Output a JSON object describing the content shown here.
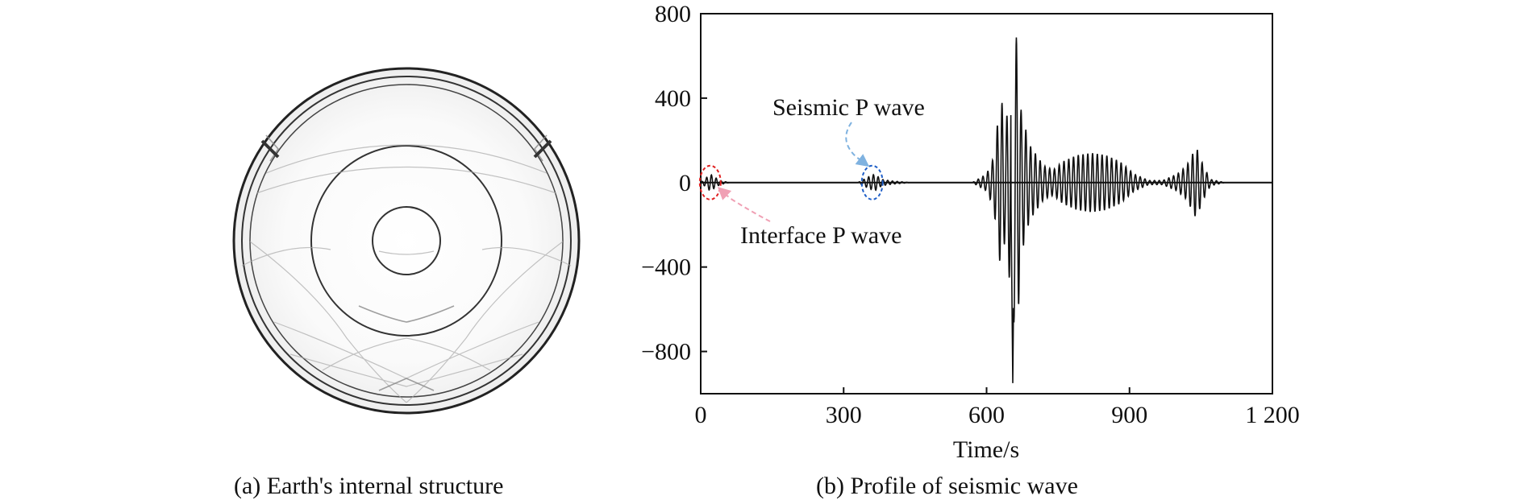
{
  "panel_a": {
    "caption": "(a) Earth's internal structure",
    "icon": "earth-cross-section-image"
  },
  "panel_b": {
    "caption": "(b) Profile of seismic wave"
  },
  "chart_data": {
    "type": "line",
    "xlabel": "Time/s",
    "ylabel": "",
    "xlim": [
      0,
      1200
    ],
    "ylim": [
      -1000,
      800
    ],
    "x_ticks": [
      0,
      300,
      600,
      900,
      1200
    ],
    "x_tick_labels": [
      "0",
      "300",
      "600",
      "900",
      "1 200"
    ],
    "y_ticks": [
      800,
      400,
      0,
      -400,
      -800
    ],
    "y_tick_labels": [
      "800",
      "400",
      "0",
      "−400",
      "−800"
    ],
    "grid": false,
    "series": [
      {
        "color": "#111111",
        "envelope_points": [
          [
            0,
            0
          ],
          [
            20,
            40
          ],
          [
            40,
            10
          ],
          [
            60,
            0
          ],
          [
            330,
            0
          ],
          [
            350,
            25
          ],
          [
            365,
            40
          ],
          [
            380,
            15
          ],
          [
            400,
            8
          ],
          [
            440,
            0
          ],
          [
            570,
            0
          ],
          [
            600,
            40
          ],
          [
            615,
            120
          ],
          [
            630,
            420
          ],
          [
            640,
            250
          ],
          [
            655,
            650
          ],
          [
            665,
            700
          ],
          [
            672,
            350
          ],
          [
            690,
            180
          ],
          [
            720,
            80
          ],
          [
            740,
            60
          ],
          [
            760,
            100
          ],
          [
            790,
            130
          ],
          [
            820,
            140
          ],
          [
            850,
            130
          ],
          [
            880,
            100
          ],
          [
            910,
            40
          ],
          [
            940,
            10
          ],
          [
            970,
            10
          ],
          [
            1000,
            40
          ],
          [
            1020,
            80
          ],
          [
            1040,
            170
          ],
          [
            1055,
            80
          ],
          [
            1070,
            15
          ],
          [
            1100,
            0
          ],
          [
            1200,
            0
          ]
        ],
        "min_peak": [
          655,
          -950
        ]
      }
    ],
    "annotations": [
      {
        "text": "Seismic P wave",
        "x": 360,
        "y": 0,
        "color": "#7fb2e0",
        "marker_color": "#1f5fc8"
      },
      {
        "text": "Interface P wave",
        "x": 20,
        "y": 0,
        "color": "#f0a0b4",
        "marker_color": "#e02020"
      }
    ]
  }
}
